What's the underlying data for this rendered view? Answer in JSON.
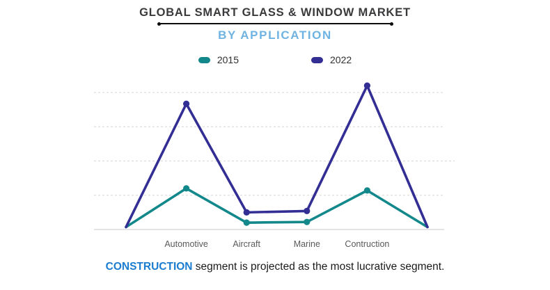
{
  "header": {
    "title": "GLOBAL SMART GLASS & WINDOW MARKET",
    "subtitle": "BY APPLICATION"
  },
  "footer": {
    "highlight": "CONSTRUCTION",
    "text": " segment is projected as the most lucrative segment."
  },
  "colors": {
    "series_2015": "#13888b",
    "series_2022": "#322e94",
    "subtitle_blue": "#6fb3e2",
    "footer_blue": "#1b7cd0",
    "gridline": "#d6d6d6",
    "baseline": "#c8c8c8"
  },
  "chart_data": {
    "type": "line",
    "title": "GLOBAL SMART GLASS & WINDOW MARKET",
    "subtitle": "BY APPLICATION",
    "categories": [
      "Automotive",
      "Aircraft",
      "Marine",
      "Contruction"
    ],
    "series": [
      {
        "name": "2015",
        "color": "#13888b",
        "values": [
          1.2,
          0.2,
          0.22,
          1.14
        ]
      },
      {
        "name": "2022",
        "color": "#322e94",
        "values": [
          3.67,
          0.5,
          0.54,
          4.2
        ]
      }
    ],
    "edges_at_zero": true,
    "legend_position": "top",
    "grid": true,
    "gridline_count": 5,
    "y_axis_labels_visible": false,
    "ylim": [
      0,
      4.4
    ],
    "markers": "circle"
  }
}
